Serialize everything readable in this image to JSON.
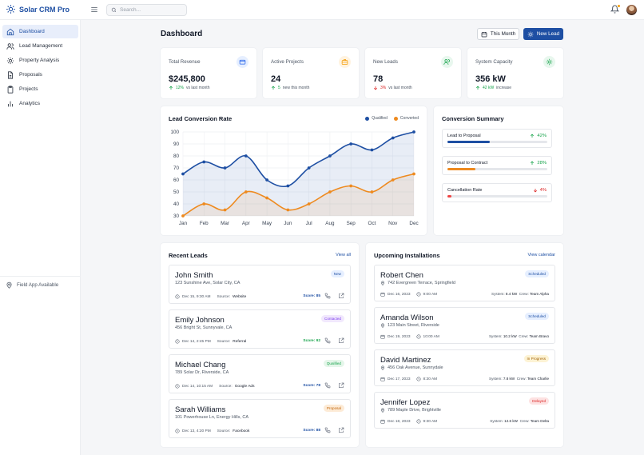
{
  "app": {
    "name": "Solar CRM Pro"
  },
  "search": {
    "placeholder": "Search..."
  },
  "sidebar": {
    "items": [
      {
        "label": "Dashboard",
        "icon": "home-icon",
        "active": true
      },
      {
        "label": "Lead Management",
        "icon": "users-icon"
      },
      {
        "label": "Property Analysis",
        "icon": "sun-icon"
      },
      {
        "label": "Proposals",
        "icon": "document-icon"
      },
      {
        "label": "Projects",
        "icon": "clipboard-icon"
      },
      {
        "label": "Analytics",
        "icon": "bar-chart-icon"
      }
    ],
    "footer": "Field App Available"
  },
  "header": {
    "title": "Dashboard",
    "period_button": "This Month",
    "new_lead_button": "New Lead"
  },
  "stats": [
    {
      "label": "Total Revenue",
      "value": "$245,800",
      "change": "12%",
      "change_text": "vs last month",
      "direction": "up",
      "icon": "credit-card-icon",
      "icon_color": "#2563eb",
      "icon_bg": "#e6efff"
    },
    {
      "label": "Active Projects",
      "value": "24",
      "change": "5",
      "change_text": "new this month",
      "direction": "up",
      "icon": "briefcase-icon",
      "icon_color": "#f59e0b",
      "icon_bg": "#fff3e0"
    },
    {
      "label": "New Leads",
      "value": "78",
      "change": "3%",
      "change_text": "vs last month",
      "direction": "down",
      "icon": "users-icon",
      "icon_color": "#16a34a",
      "icon_bg": "#e8f7ee"
    },
    {
      "label": "System Capacity",
      "value": "356 kW",
      "change": "42 kW",
      "change_text": "increase",
      "direction": "up",
      "icon": "sun-icon",
      "icon_color": "#16a34a",
      "icon_bg": "#e8f7ee"
    }
  ],
  "chart": {
    "title": "Lead Conversion Rate",
    "legend": [
      "Qualified",
      "Converted"
    ]
  },
  "chart_data": {
    "type": "line",
    "title": "Lead Conversion Rate",
    "categories": [
      "Jan",
      "Feb",
      "Mar",
      "Apr",
      "May",
      "Jun",
      "Jul",
      "Aug",
      "Sep",
      "Oct",
      "Nov",
      "Dec"
    ],
    "ylim": [
      30,
      100
    ],
    "yticks": [
      30,
      40,
      50,
      60,
      70,
      80,
      90,
      100
    ],
    "grid": true,
    "legend_position": "top-right",
    "series": [
      {
        "name": "Qualified",
        "color": "#1e4fa3",
        "values": [
          65,
          75,
          70,
          80,
          60,
          55,
          70,
          80,
          90,
          85,
          95,
          100
        ]
      },
      {
        "name": "Converted",
        "color": "#ee8a1f",
        "values": [
          30,
          40,
          35,
          50,
          45,
          35,
          40,
          50,
          55,
          50,
          60,
          65
        ]
      }
    ]
  },
  "conversion": {
    "title": "Conversion Summary",
    "items": [
      {
        "label": "Lead to Proposal",
        "value": "42%",
        "direction": "up",
        "fill": 0.42,
        "color": "#1e4fa3"
      },
      {
        "label": "Proposal to Contract",
        "value": "28%",
        "direction": "up",
        "fill": 0.28,
        "color": "#ee8a1f"
      },
      {
        "label": "Cancellation Rate",
        "value": "4%",
        "direction": "down",
        "fill": 0.04,
        "color": "#ef4444"
      }
    ]
  },
  "recent_leads": {
    "title": "Recent Leads",
    "view_all": "View all",
    "items": [
      {
        "name": "John Smith",
        "address": "123 Sunshine Ave, Solar City, CA",
        "status": "New",
        "date": "Dec 15, 9:30 AM",
        "source_label": "Source:",
        "source": "Website",
        "score": "Score: 85",
        "score_color": "#1e4fa3",
        "badge_bg": "#e6efff",
        "badge_fg": "#1e4fa3"
      },
      {
        "name": "Emily Johnson",
        "address": "456 Bright St, Sunnyvale, CA",
        "status": "Contacted",
        "date": "Dec 14, 2:45 PM",
        "source_label": "Source:",
        "source": "Referral",
        "score": "Score: 92",
        "score_color": "#16a34a",
        "badge_bg": "#f1e8fd",
        "badge_fg": "#7c3aed"
      },
      {
        "name": "Michael Chang",
        "address": "789 Solar Dr, Riverside, CA",
        "status": "Qualified",
        "date": "Dec 14, 10:15 AM",
        "source_label": "Source:",
        "source": "Google Ads",
        "score": "Score: 78",
        "score_color": "#1e4fa3",
        "badge_bg": "#e5f6ea",
        "badge_fg": "#16a34a"
      },
      {
        "name": "Sarah Williams",
        "address": "101 Powerhouse Ln, Energy Hills, CA",
        "status": "Proposal",
        "date": "Dec 13, 4:20 PM",
        "source_label": "Source:",
        "source": "Facebook",
        "score": "Score: 88",
        "score_color": "#1e4fa3",
        "badge_bg": "#fdebd6",
        "badge_fg": "#c2660c"
      }
    ]
  },
  "installations": {
    "title": "Upcoming Installations",
    "view_calendar": "View calendar",
    "items": [
      {
        "name": "Robert Chen",
        "address": "742 Evergreen Terrace, Springfield",
        "status": "Scheduled",
        "date": "Dec 16, 2023",
        "time": "9:00 AM",
        "system_label": "System:",
        "system": "8.4 kW",
        "crew_label": "Crew:",
        "crew": "Team Alpha",
        "badge_bg": "#e6efff",
        "badge_fg": "#1e4fa3"
      },
      {
        "name": "Amanda Wilson",
        "address": "123 Main Street, Riverside",
        "status": "Scheduled",
        "date": "Dec 19, 2023",
        "time": "10:00 AM",
        "system_label": "System:",
        "system": "10.2 kW",
        "crew_label": "Crew:",
        "crew": "Team Bravo",
        "badge_bg": "#e6efff",
        "badge_fg": "#1e4fa3"
      },
      {
        "name": "David Martinez",
        "address": "456 Oak Avenue, Sunnydale",
        "status": "In Progress",
        "date": "Dec 17, 2023",
        "time": "8:30 AM",
        "system_label": "System:",
        "system": "7.8 kW",
        "crew_label": "Crew:",
        "crew": "Team Charlie",
        "badge_bg": "#fdf3d4",
        "badge_fg": "#a16207"
      },
      {
        "name": "Jennifer Lopez",
        "address": "789 Maple Drive, Brightville",
        "status": "Delayed",
        "date": "Dec 18, 2023",
        "time": "9:30 AM",
        "system_label": "System:",
        "system": "12.6 kW",
        "crew_label": "Crew:",
        "crew": "Team Delta",
        "badge_bg": "#fde2e2",
        "badge_fg": "#dc2626"
      }
    ]
  }
}
